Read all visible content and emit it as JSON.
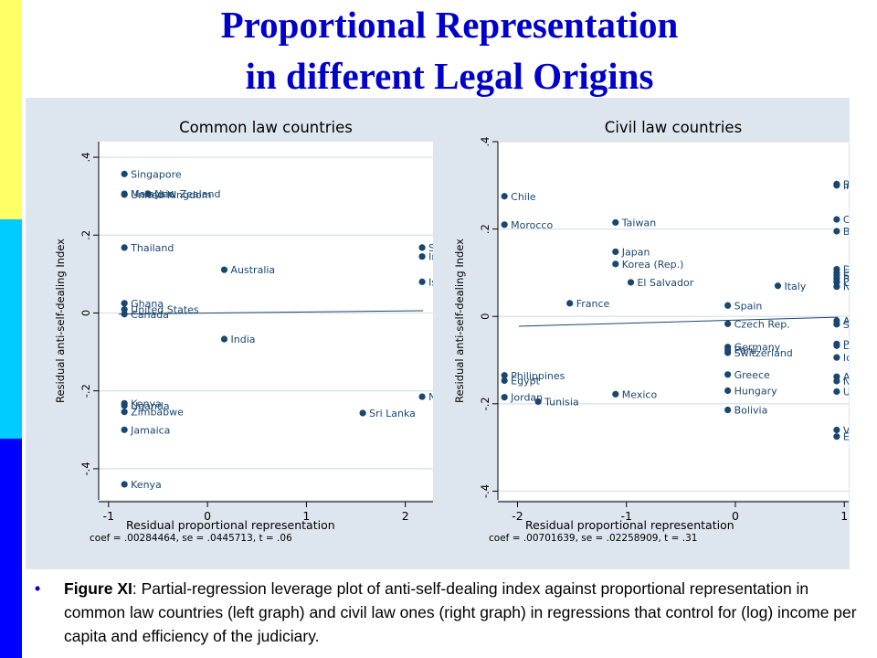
{
  "title": {
    "line1": "Proportional Representation",
    "line2": "in different Legal Origins"
  },
  "caption": {
    "bullet": "•",
    "label": "Figure XI",
    "text": ":   Partial-regression leverage plot of anti-self-dealing index against proportional representation in common law countries (left graph) and civil law ones (right graph) in regressions that control for (log) income per capita and efficiency of the judiciary."
  },
  "colors": {
    "title": "#0000cc",
    "panel_background": "#dde6ee",
    "plot_background": "#ffffff",
    "marker": "#1a476f",
    "fit_line": "#1a476f",
    "stripe_top": "#ffff66",
    "stripe_middle": "#00ccff",
    "stripe_bottom": "#0000ff"
  },
  "chart_data": [
    {
      "type": "scatter",
      "title": "Common law countries",
      "xlabel": "Residual proportional representation",
      "ylabel": "Residual anti-self-dealing Index",
      "footnote": "coef = .00284464, se = .0445713, t = .06",
      "xlim": [
        -1.1,
        2.28
      ],
      "ylim": [
        -0.48,
        0.44
      ],
      "xticks": [
        -1,
        0,
        1,
        2
      ],
      "yticks": [
        -0.4,
        -0.2,
        0,
        0.2,
        0.4
      ],
      "xtick_labels": [
        "-1",
        "0",
        "1",
        "2"
      ],
      "ytick_labels": [
        "-.4",
        "-.2",
        "0",
        ".2",
        ".4"
      ],
      "grid": "horizontal",
      "fit": {
        "intercept": -0.0003,
        "slope": 0.00284464
      },
      "points": [
        {
          "label": "Singapore",
          "x": -0.84,
          "y": 0.357
        },
        {
          "label": "Malaysia",
          "x": -0.84,
          "y": 0.306
        },
        {
          "label": "New Zealand",
          "x": -0.6,
          "y": 0.306
        },
        {
          "label": "United Kingdom",
          "x": -0.84,
          "y": 0.304
        },
        {
          "label": "Thailand",
          "x": -0.84,
          "y": 0.168
        },
        {
          "label": "Australia",
          "x": 0.17,
          "y": 0.111
        },
        {
          "label": "South Africa",
          "x": 2.17,
          "y": 0.168
        },
        {
          "label": "Ireland",
          "x": 2.17,
          "y": 0.145
        },
        {
          "label": "Israel",
          "x": 2.17,
          "y": 0.08
        },
        {
          "label": "Ghana",
          "x": -0.84,
          "y": 0.025
        },
        {
          "label": "United States",
          "x": -0.84,
          "y": 0.009
        },
        {
          "label": "Canada",
          "x": -0.84,
          "y": -0.003
        },
        {
          "label": "India",
          "x": 0.17,
          "y": -0.067
        },
        {
          "label": "Nigeria",
          "x": 2.17,
          "y": -0.215
        },
        {
          "label": "Uganda",
          "x": -0.84,
          "y": -0.238
        },
        {
          "label": "Kenya",
          "x": -0.84,
          "y": -0.232
        },
        {
          "label": "Zimbabwe",
          "x": -0.84,
          "y": -0.254
        },
        {
          "label": "Sri Lanka",
          "x": 1.57,
          "y": -0.257
        },
        {
          "label": "Jamaica",
          "x": -0.84,
          "y": -0.3
        },
        {
          "label": "Kenya",
          "x": -0.84,
          "y": -0.44
        }
      ]
    },
    {
      "type": "scatter",
      "title": "Civil law countries",
      "xlabel": "Residual proportional representation",
      "ylabel": "Residual anti-self-dealing Index",
      "footnote": "coef = .00701639, se = .02258909, t = .31",
      "xlim": [
        -2.18,
        1.04
      ],
      "ylim": [
        -0.42,
        0.4
      ],
      "xticks": [
        -2,
        -1,
        0,
        1
      ],
      "yticks": [
        -0.4,
        -0.2,
        0,
        0.2,
        0.4
      ],
      "xtick_labels": [
        "-2",
        "-1",
        "0",
        "1"
      ],
      "ytick_labels": [
        "-.4",
        "-.2",
        "0",
        ".2",
        ".4"
      ],
      "grid": "horizontal",
      "fit": {
        "intercept": -0.0085,
        "slope": 0.00701639
      },
      "points": [
        {
          "label": "Chile",
          "x": -2.12,
          "y": 0.275
        },
        {
          "label": "Morocco",
          "x": -2.12,
          "y": 0.21
        },
        {
          "label": "Taiwan",
          "x": -1.1,
          "y": 0.215
        },
        {
          "label": "Japan",
          "x": -1.1,
          "y": 0.148
        },
        {
          "label": "Korea (Rep.)",
          "x": -1.1,
          "y": 0.12
        },
        {
          "label": "El Salvador",
          "x": -0.96,
          "y": 0.078
        },
        {
          "label": "France",
          "x": -1.52,
          "y": 0.03
        },
        {
          "label": "Italy",
          "x": 0.39,
          "y": 0.07
        },
        {
          "label": "Spain",
          "x": -0.07,
          "y": 0.025
        },
        {
          "label": "Czech Rep.",
          "x": -0.07,
          "y": -0.017
        },
        {
          "label": "Germany",
          "x": -0.07,
          "y": -0.07
        },
        {
          "label": "Peru",
          "x": -0.07,
          "y": -0.077
        },
        {
          "label": "Switzerland",
          "x": -0.07,
          "y": -0.083
        },
        {
          "label": "Greece",
          "x": -0.07,
          "y": -0.133
        },
        {
          "label": "Hungary",
          "x": -0.07,
          "y": -0.17
        },
        {
          "label": "Bolivia",
          "x": -0.07,
          "y": -0.214
        },
        {
          "label": "Mexico",
          "x": -1.1,
          "y": -0.178
        },
        {
          "label": "Philippines",
          "x": -2.12,
          "y": -0.135
        },
        {
          "label": "Egypt",
          "x": -2.12,
          "y": -0.147
        },
        {
          "label": "Jordan",
          "x": -2.12,
          "y": -0.185
        },
        {
          "label": "Tunisia",
          "x": -1.81,
          "y": -0.195
        },
        {
          "label": "Bulgaria",
          "x": 0.93,
          "y": 0.303
        },
        {
          "label": "Indonesia",
          "x": 0.93,
          "y": 0.3
        },
        {
          "label": "Colombia",
          "x": 0.93,
          "y": 0.222
        },
        {
          "label": "Belgium",
          "x": 0.93,
          "y": 0.195
        },
        {
          "label": "Denmark",
          "x": 0.93,
          "y": 0.108
        },
        {
          "label": "Ecuador",
          "x": 0.93,
          "y": 0.1
        },
        {
          "label": "Finland",
          "x": 0.93,
          "y": 0.094
        },
        {
          "label": "Panama",
          "x": 0.93,
          "y": 0.087
        },
        {
          "label": "Portugal",
          "x": 0.93,
          "y": 0.08
        },
        {
          "label": "Lithuania",
          "x": 0.93,
          "y": 0.078
        },
        {
          "label": "Norway",
          "x": 0.93,
          "y": 0.068
        },
        {
          "label": "Argentina",
          "x": 0.93,
          "y": -0.01
        },
        {
          "label": "Sweden",
          "x": 0.93,
          "y": -0.018
        },
        {
          "label": "Poland",
          "x": 0.93,
          "y": -0.063
        },
        {
          "label": "Luxembourg",
          "x": 0.93,
          "y": -0.067
        },
        {
          "label": "Iceland",
          "x": 0.93,
          "y": -0.094
        },
        {
          "label": "Austria",
          "x": 0.93,
          "y": -0.138
        },
        {
          "label": "Netherlands",
          "x": 0.93,
          "y": -0.148
        },
        {
          "label": "Uruguay",
          "x": 0.93,
          "y": -0.172
        },
        {
          "label": "Venezuela",
          "x": 0.93,
          "y": -0.26
        },
        {
          "label": "Ecuador",
          "x": 0.93,
          "y": -0.275
        }
      ]
    }
  ]
}
